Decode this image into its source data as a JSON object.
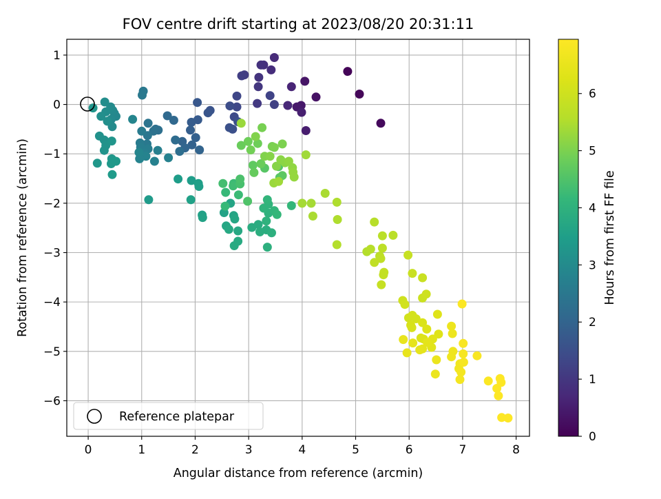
{
  "chart_data": {
    "type": "scatter",
    "title": "FOV centre drift starting at 2023/08/20 20:31:11",
    "xlabel": "Angular distance from reference (arcmin)",
    "ylabel": "Rotation from reference (arcmin)",
    "xlim": [
      -0.4,
      8.25
    ],
    "ylim": [
      -6.72,
      1.32
    ],
    "x_ticks": [
      0,
      1,
      2,
      3,
      4,
      5,
      6,
      7,
      8
    ],
    "y_ticks": [
      1,
      0,
      -1,
      -2,
      -3,
      -4,
      -5,
      -6
    ],
    "grid": true,
    "colormap": "viridis",
    "colorbar": {
      "label": "Hours from first FF file",
      "range": [
        0,
        6.95
      ],
      "ticks": [
        0,
        1,
        2,
        3,
        4,
        5,
        6
      ]
    },
    "legend": {
      "position": "bottom-left",
      "entries": [
        {
          "label": "Reference platepar",
          "marker": "open-circle"
        }
      ]
    },
    "reference_point": {
      "x": 0,
      "y": 0
    },
    "series": [
      {
        "name": "",
        "columns": [
          "x",
          "y",
          "hours"
        ],
        "points": [
          [
            4.85,
            0.67,
            0.05
          ],
          [
            5.07,
            0.21,
            0.1
          ],
          [
            5.47,
            -0.38,
            0.15
          ],
          [
            4.26,
            0.15,
            0.3
          ],
          [
            4.05,
            0.47,
            0.35
          ],
          [
            3.98,
            -0.02,
            0.4
          ],
          [
            3.9,
            -0.05,
            0.45
          ],
          [
            4.07,
            -0.53,
            0.5
          ],
          [
            3.99,
            -0.16,
            0.55
          ],
          [
            3.8,
            0.36,
            0.65
          ],
          [
            3.73,
            -0.02,
            0.7
          ],
          [
            3.48,
            0.95,
            0.75
          ],
          [
            3.42,
            0.7,
            0.8
          ],
          [
            3.28,
            0.8,
            0.85
          ],
          [
            3.23,
            0.8,
            0.9
          ],
          [
            3.19,
            0.55,
            0.95
          ],
          [
            3.18,
            0.36,
            1.0
          ],
          [
            3.16,
            0.02,
            1.05
          ],
          [
            2.92,
            0.6,
            1.1
          ],
          [
            2.87,
            0.58,
            1.15
          ],
          [
            3.48,
            0.0,
            1.2
          ],
          [
            3.4,
            0.18,
            1.25
          ],
          [
            2.78,
            0.17,
            1.3
          ],
          [
            2.78,
            -0.05,
            1.35
          ],
          [
            2.73,
            -0.25,
            1.4
          ],
          [
            2.65,
            -0.03,
            1.45
          ],
          [
            2.7,
            -0.5,
            1.5
          ],
          [
            2.8,
            -0.35,
            1.52
          ],
          [
            2.64,
            -0.47,
            1.55
          ],
          [
            2.28,
            -0.12,
            1.6
          ],
          [
            2.24,
            -0.17,
            1.65
          ],
          [
            2.04,
            0.04,
            1.7
          ],
          [
            2.05,
            -0.31,
            1.75
          ],
          [
            1.93,
            -0.36,
            1.8
          ],
          [
            1.91,
            -0.52,
            1.85
          ],
          [
            2.01,
            -0.67,
            1.9
          ],
          [
            1.94,
            -0.82,
            1.95
          ],
          [
            2.08,
            -0.92,
            2.0
          ],
          [
            1.76,
            -0.75,
            2.0
          ],
          [
            1.81,
            -0.88,
            2.05
          ],
          [
            1.6,
            -0.32,
            2.1
          ],
          [
            1.48,
            -0.23,
            2.15
          ],
          [
            1.63,
            -0.72,
            2.2
          ],
          [
            1.71,
            -0.95,
            2.25
          ],
          [
            1.31,
            -0.52,
            2.3
          ],
          [
            1.26,
            -0.5,
            2.3
          ],
          [
            1.22,
            -0.54,
            2.35
          ],
          [
            1.12,
            -0.38,
            2.4
          ],
          [
            1.11,
            -0.63,
            2.45
          ],
          [
            1.1,
            -0.8,
            2.5
          ],
          [
            1.03,
            0.27,
            2.5
          ],
          [
            1.01,
            0.19,
            2.55
          ],
          [
            1.0,
            -0.54,
            2.6
          ],
          [
            0.97,
            -0.78,
            2.6
          ],
          [
            0.98,
            -0.87,
            2.65
          ],
          [
            1.12,
            -0.9,
            2.65
          ],
          [
            1.05,
            -0.98,
            2.7
          ],
          [
            1.3,
            -0.93,
            2.7
          ],
          [
            1.5,
            -1.08,
            2.75
          ],
          [
            1.24,
            -1.15,
            2.75
          ],
          [
            1.08,
            -1.05,
            2.8
          ],
          [
            0.96,
            -1.1,
            2.8
          ],
          [
            0.95,
            -0.97,
            2.85
          ],
          [
            0.83,
            -0.3,
            2.85
          ],
          [
            0.52,
            -0.24,
            2.9
          ],
          [
            0.49,
            -0.18,
            2.9
          ],
          [
            0.46,
            -0.12,
            2.95
          ],
          [
            0.43,
            -0.3,
            2.95
          ],
          [
            0.45,
            -0.45,
            3.0
          ],
          [
            0.42,
            -0.05,
            3.0
          ],
          [
            0.31,
            0.05,
            3.05
          ],
          [
            0.33,
            -0.15,
            3.05
          ],
          [
            0.24,
            -0.24,
            3.1
          ],
          [
            0.36,
            -0.34,
            3.1
          ],
          [
            0.21,
            -0.64,
            3.15
          ],
          [
            0.3,
            -0.72,
            3.15
          ],
          [
            0.3,
            -0.93,
            3.2
          ],
          [
            0.33,
            -0.83,
            3.2
          ],
          [
            0.44,
            -0.74,
            3.25
          ],
          [
            0.09,
            -0.07,
            3.25
          ],
          [
            0.17,
            -1.19,
            3.3
          ],
          [
            0.44,
            -1.1,
            3.3
          ],
          [
            0.43,
            -1.2,
            3.35
          ],
          [
            0.52,
            -1.15,
            3.35
          ],
          [
            0.45,
            -1.42,
            3.4
          ],
          [
            1.13,
            -1.93,
            3.4
          ],
          [
            1.68,
            -1.51,
            3.45
          ],
          [
            1.93,
            -1.54,
            3.45
          ],
          [
            2.06,
            -1.6,
            3.5
          ],
          [
            2.07,
            -1.66,
            3.5
          ],
          [
            1.92,
            -1.93,
            3.55
          ],
          [
            2.13,
            -2.24,
            3.55
          ],
          [
            2.14,
            -2.29,
            3.6
          ],
          [
            2.54,
            -2.19,
            3.6
          ],
          [
            2.66,
            -2.0,
            3.65
          ],
          [
            2.72,
            -2.25,
            3.65
          ],
          [
            2.74,
            -2.32,
            3.7
          ],
          [
            2.58,
            -2.46,
            3.7
          ],
          [
            2.63,
            -2.53,
            3.75
          ],
          [
            2.8,
            -2.56,
            3.75
          ],
          [
            2.73,
            -2.86,
            3.8
          ],
          [
            2.8,
            -2.77,
            3.8
          ],
          [
            3.06,
            -2.49,
            3.85
          ],
          [
            3.18,
            -2.43,
            3.85
          ],
          [
            3.21,
            -2.58,
            3.9
          ],
          [
            3.33,
            -2.54,
            3.9
          ],
          [
            3.35,
            -2.89,
            3.95
          ],
          [
            3.43,
            -2.6,
            3.95
          ],
          [
            3.33,
            -2.36,
            4.0
          ],
          [
            3.37,
            -2.2,
            4.0
          ],
          [
            3.28,
            -2.1,
            4.05
          ],
          [
            3.37,
            -2.02,
            4.05
          ],
          [
            3.35,
            -1.93,
            4.1
          ],
          [
            3.48,
            -2.15,
            4.1
          ],
          [
            3.53,
            -2.23,
            4.15
          ],
          [
            3.8,
            -2.05,
            4.15
          ],
          [
            2.56,
            -2.06,
            4.2
          ],
          [
            2.57,
            -1.78,
            4.2
          ],
          [
            2.81,
            -1.83,
            4.25
          ],
          [
            2.72,
            -1.6,
            4.25
          ],
          [
            2.71,
            -1.65,
            4.3
          ],
          [
            2.52,
            -1.6,
            4.35
          ],
          [
            2.84,
            -1.61,
            4.4
          ],
          [
            2.84,
            -1.51,
            4.45
          ],
          [
            2.98,
            -1.96,
            4.5
          ],
          [
            3.56,
            -1.26,
            4.55
          ],
          [
            3.3,
            -1.29,
            4.6
          ],
          [
            3.58,
            -1.48,
            4.6
          ],
          [
            3.63,
            -1.44,
            4.65
          ],
          [
            3.08,
            -1.23,
            4.7
          ],
          [
            3.1,
            -1.38,
            4.75
          ],
          [
            3.23,
            -1.2,
            4.8
          ],
          [
            2.86,
            -0.83,
            4.8
          ],
          [
            2.99,
            -0.75,
            4.85
          ],
          [
            3.17,
            -0.79,
            4.85
          ],
          [
            3.04,
            -0.92,
            4.9
          ],
          [
            3.25,
            -0.47,
            4.95
          ],
          [
            3.44,
            -0.85,
            4.95
          ],
          [
            3.48,
            -0.87,
            5.0
          ],
          [
            3.63,
            -0.8,
            5.0
          ],
          [
            3.13,
            -0.65,
            5.05
          ],
          [
            3.3,
            -1.05,
            5.05
          ],
          [
            3.4,
            -1.05,
            5.1
          ],
          [
            3.52,
            -1.25,
            5.1
          ],
          [
            3.6,
            -1.12,
            5.15
          ],
          [
            3.68,
            -1.18,
            5.15
          ],
          [
            3.75,
            -1.15,
            5.2
          ],
          [
            3.82,
            -1.28,
            5.2
          ],
          [
            3.83,
            -1.37,
            5.25
          ],
          [
            3.85,
            -1.47,
            5.25
          ],
          [
            2.86,
            -0.38,
            5.3
          ],
          [
            3.47,
            -1.59,
            5.3
          ],
          [
            3.56,
            -1.56,
            5.35
          ],
          [
            4.07,
            -1.02,
            5.35
          ],
          [
            4.0,
            -2.0,
            5.4
          ],
          [
            4.17,
            -2.0,
            5.4
          ],
          [
            4.2,
            -2.26,
            5.45
          ],
          [
            4.43,
            -1.8,
            5.45
          ],
          [
            4.65,
            -1.98,
            5.5
          ],
          [
            4.66,
            -2.33,
            5.5
          ],
          [
            4.65,
            -2.84,
            5.55
          ],
          [
            5.21,
            -2.98,
            5.55
          ],
          [
            5.28,
            -2.93,
            5.6
          ],
          [
            5.35,
            -2.38,
            5.6
          ],
          [
            5.5,
            -2.66,
            5.65
          ],
          [
            5.7,
            -2.65,
            5.65
          ],
          [
            5.5,
            -2.91,
            5.7
          ],
          [
            5.45,
            -3.07,
            5.7
          ],
          [
            5.47,
            -3.12,
            5.75
          ],
          [
            5.35,
            -3.2,
            5.75
          ],
          [
            5.53,
            -3.4,
            5.8
          ],
          [
            5.52,
            -3.45,
            5.8
          ],
          [
            5.48,
            -3.65,
            5.85
          ],
          [
            5.98,
            -3.05,
            5.85
          ],
          [
            6.06,
            -3.42,
            5.9
          ],
          [
            6.25,
            -3.51,
            5.9
          ],
          [
            6.25,
            -3.92,
            5.95
          ],
          [
            6.32,
            -3.84,
            6.0
          ],
          [
            5.88,
            -3.97,
            6.0
          ],
          [
            5.92,
            -4.05,
            6.05
          ],
          [
            5.99,
            -4.32,
            6.05
          ],
          [
            6.06,
            -4.27,
            6.1
          ],
          [
            6.13,
            -4.34,
            6.1
          ],
          [
            6.03,
            -4.47,
            6.15
          ],
          [
            6.05,
            -4.52,
            6.15
          ],
          [
            6.25,
            -4.42,
            6.2
          ],
          [
            6.22,
            -4.73,
            6.2
          ],
          [
            6.27,
            -4.75,
            6.25
          ],
          [
            6.33,
            -4.55,
            6.25
          ],
          [
            6.53,
            -4.25,
            6.3
          ],
          [
            6.55,
            -4.65,
            6.3
          ],
          [
            6.44,
            -4.75,
            6.35
          ],
          [
            6.42,
            -4.92,
            6.35
          ],
          [
            6.34,
            -4.82,
            6.4
          ],
          [
            6.25,
            -4.95,
            6.4
          ],
          [
            6.2,
            -4.97,
            6.45
          ],
          [
            6.07,
            -4.83,
            6.45
          ],
          [
            5.96,
            -5.03,
            6.5
          ],
          [
            5.89,
            -4.76,
            6.5
          ],
          [
            6.51,
            -5.17,
            6.55
          ],
          [
            6.49,
            -5.46,
            6.55
          ],
          [
            6.79,
            -4.49,
            6.6
          ],
          [
            6.81,
            -4.64,
            6.6
          ],
          [
            6.82,
            -5.0,
            6.65
          ],
          [
            6.79,
            -5.11,
            6.65
          ],
          [
            6.95,
            -5.25,
            6.7
          ],
          [
            6.93,
            -5.35,
            6.7
          ],
          [
            6.97,
            -5.42,
            6.75
          ],
          [
            6.95,
            -5.57,
            6.75
          ],
          [
            7.01,
            -5.05,
            6.8
          ],
          [
            7.02,
            -5.22,
            6.8
          ],
          [
            7.01,
            -4.84,
            6.85
          ],
          [
            7.27,
            -5.09,
            6.85
          ],
          [
            6.99,
            -4.04,
            6.9
          ],
          [
            7.48,
            -5.6,
            6.9
          ],
          [
            7.64,
            -5.75,
            6.92
          ],
          [
            7.67,
            -5.9,
            6.93
          ],
          [
            7.7,
            -5.55,
            6.94
          ],
          [
            7.72,
            -5.63,
            6.94
          ],
          [
            7.73,
            -6.34,
            6.95
          ],
          [
            7.85,
            -6.35,
            6.95
          ]
        ]
      }
    ]
  }
}
